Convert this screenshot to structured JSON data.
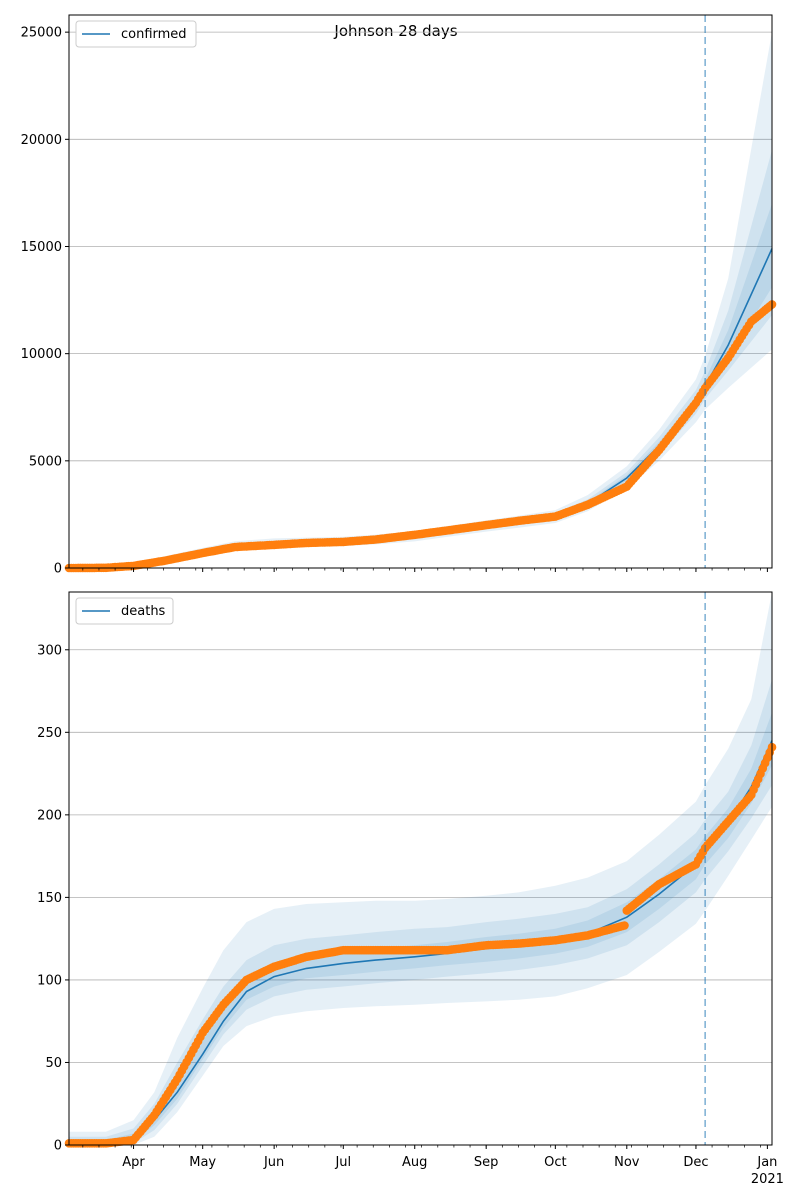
{
  "title": "Johnson 28 days",
  "colors": {
    "model": "#1f77b4",
    "observed": "#ff7f0e",
    "band": "#1f77b4",
    "grid": "#b0b0b0",
    "cutoff": "#1f77b4"
  },
  "x_axis": {
    "start": "2020-03-04",
    "end": "2021-01-03",
    "month_ticks": [
      "Apr",
      "May",
      "Jun",
      "Jul",
      "Aug",
      "Sep",
      "Oct",
      "Nov",
      "Dec",
      "Jan"
    ],
    "year_label": "2021"
  },
  "chart_data": [
    {
      "type": "line",
      "legend": "confirmed",
      "legend_position": "top-left",
      "grid": true,
      "ylim": [
        0,
        25800
      ],
      "yticks": [
        0,
        5000,
        10000,
        15000,
        20000,
        25000
      ],
      "forecast_start": "2020-12-05",
      "model": {
        "dates": [
          "2020-03-04",
          "2020-03-20",
          "2020-04-01",
          "2020-04-15",
          "2020-05-01",
          "2020-05-15",
          "2020-06-01",
          "2020-06-15",
          "2020-07-01",
          "2020-07-15",
          "2020-08-01",
          "2020-08-15",
          "2020-09-01",
          "2020-09-15",
          "2020-10-01",
          "2020-10-15",
          "2020-11-01",
          "2020-11-15",
          "2020-12-01",
          "2020-12-05",
          "2020-12-15",
          "2021-01-03"
        ],
        "values": [
          0,
          20,
          120,
          380,
          720,
          1000,
          1130,
          1180,
          1230,
          1320,
          1470,
          1700,
          1950,
          2150,
          2400,
          3000,
          4200,
          5700,
          7700,
          8500,
          10400,
          14900
        ]
      },
      "observed": {
        "dates": [
          "2020-03-04",
          "2020-03-20",
          "2020-04-01",
          "2020-04-15",
          "2020-05-01",
          "2020-05-15",
          "2020-06-01",
          "2020-06-15",
          "2020-07-01",
          "2020-07-15",
          "2020-08-01",
          "2020-08-15",
          "2020-09-01",
          "2020-09-15",
          "2020-10-01",
          "2020-10-15",
          "2020-11-01",
          "2020-11-15",
          "2020-12-01",
          "2020-12-05",
          "2020-12-15",
          "2020-12-25",
          "2021-01-03"
        ],
        "values": [
          0,
          10,
          100,
          350,
          700,
          980,
          1080,
          1170,
          1220,
          1330,
          1550,
          1750,
          2000,
          2200,
          2400,
          2950,
          3800,
          5500,
          7700,
          8400,
          9800,
          11500,
          12300
        ]
      },
      "bands": [
        {
          "lower": [
            0,
            10,
            80,
            280,
            560,
            800,
            920,
            980,
            1020,
            1100,
            1240,
            1450,
            1700,
            1880,
            2100,
            2650,
            3700,
            5000,
            6800,
            7400,
            8400,
            10200
          ],
          "upper": [
            80,
            120,
            250,
            560,
            940,
            1250,
            1380,
            1420,
            1460,
            1560,
            1720,
            1960,
            2220,
            2440,
            2700,
            3400,
            4750,
            6450,
            8800,
            9900,
            13500,
            25000
          ]
        },
        {
          "lower": [
            0,
            15,
            95,
            320,
            630,
            890,
            1010,
            1060,
            1110,
            1190,
            1340,
            1560,
            1810,
            2000,
            2230,
            2800,
            3920,
            5300,
            7200,
            7900,
            9200,
            11800
          ],
          "upper": [
            50,
            70,
            180,
            470,
            830,
            1130,
            1260,
            1300,
            1350,
            1450,
            1600,
            1840,
            2090,
            2300,
            2570,
            3200,
            4480,
            6100,
            8300,
            9200,
            12000,
            19500
          ]
        },
        {
          "lower": [
            0,
            18,
            108,
            350,
            680,
            950,
            1080,
            1130,
            1180,
            1260,
            1410,
            1640,
            1890,
            2090,
            2330,
            2920,
            4080,
            5520,
            7480,
            8250,
            9800,
            13100
          ],
          "upper": [
            25,
            40,
            145,
            420,
            770,
            1060,
            1190,
            1240,
            1290,
            1390,
            1540,
            1770,
            2020,
            2220,
            2480,
            3090,
            4330,
            5880,
            7950,
            8800,
            11100,
            17000
          ]
        }
      ]
    },
    {
      "type": "line",
      "legend": "deaths",
      "legend_position": "top-left",
      "grid": true,
      "ylim": [
        0,
        335
      ],
      "yticks": [
        0,
        50,
        100,
        150,
        200,
        250,
        300
      ],
      "forecast_start": "2020-12-05",
      "model": {
        "dates": [
          "2020-03-04",
          "2020-03-20",
          "2020-04-01",
          "2020-04-10",
          "2020-04-20",
          "2020-05-01",
          "2020-05-10",
          "2020-05-20",
          "2020-06-01",
          "2020-06-15",
          "2020-07-01",
          "2020-07-15",
          "2020-08-01",
          "2020-08-15",
          "2020-09-01",
          "2020-09-15",
          "2020-10-01",
          "2020-10-15",
          "2020-11-01",
          "2020-11-15",
          "2020-12-01",
          "2020-12-05",
          "2020-12-15",
          "2020-12-25",
          "2021-01-03"
        ],
        "values": [
          0,
          1,
          4,
          15,
          32,
          55,
          75,
          93,
          102,
          107,
          110,
          112,
          114,
          116,
          119,
          121,
          124,
          128,
          138,
          152,
          170,
          178,
          195,
          217,
          245
        ]
      },
      "observed": {
        "dates": [
          "2020-03-04",
          "2020-03-20",
          "2020-04-01",
          "2020-04-10",
          "2020-04-20",
          "2020-05-01",
          "2020-05-10",
          "2020-05-20",
          "2020-06-01",
          "2020-06-15",
          "2020-07-01",
          "2020-07-15",
          "2020-08-01",
          "2020-08-15",
          "2020-09-01",
          "2020-09-15",
          "2020-10-01",
          "2020-10-15",
          "2020-10-31",
          "2020-11-01",
          "2020-11-15",
          "2020-12-01",
          "2020-12-05",
          "2020-12-15",
          "2020-12-25",
          "2021-01-03"
        ],
        "values": [
          1,
          1,
          3,
          18,
          40,
          68,
          85,
          100,
          108,
          114,
          118,
          118,
          118,
          118,
          121,
          122,
          124,
          127,
          133,
          142,
          158,
          170,
          180,
          196,
          212,
          241
        ]
      },
      "bands": [
        {
          "lower": [
            0,
            0,
            0,
            5,
            20,
            42,
            60,
            72,
            78,
            81,
            83,
            84,
            85,
            86,
            87,
            88,
            90,
            95,
            103,
            117,
            134,
            142,
            163,
            185,
            205
          ],
          "upper": [
            8,
            8,
            15,
            32,
            65,
            95,
            118,
            135,
            143,
            146,
            147,
            148,
            148,
            149,
            151,
            153,
            157,
            162,
            172,
            188,
            208,
            218,
            240,
            270,
            335
          ]
        },
        {
          "lower": [
            0,
            0,
            1,
            9,
            25,
            48,
            67,
            82,
            90,
            94,
            96,
            98,
            100,
            102,
            104,
            106,
            109,
            113,
            121,
            135,
            153,
            161,
            178,
            198,
            218
          ],
          "upper": [
            5,
            5,
            10,
            25,
            50,
            76,
            96,
            112,
            121,
            125,
            127,
            129,
            131,
            132,
            135,
            137,
            140,
            144,
            155,
            170,
            189,
            197,
            214,
            242,
            282
          ]
        },
        {
          "lower": [
            0,
            0,
            2,
            12,
            28,
            52,
            71,
            88,
            96,
            101,
            103,
            105,
            107,
            109,
            111,
            113,
            116,
            120,
            129,
            143,
            161,
            170,
            186,
            207,
            230
          ],
          "upper": [
            3,
            3,
            7,
            19,
            40,
            63,
            83,
            101,
            110,
            114,
            117,
            119,
            121,
            123,
            126,
            128,
            131,
            136,
            147,
            161,
            179,
            187,
            204,
            228,
            262
          ]
        }
      ]
    }
  ]
}
